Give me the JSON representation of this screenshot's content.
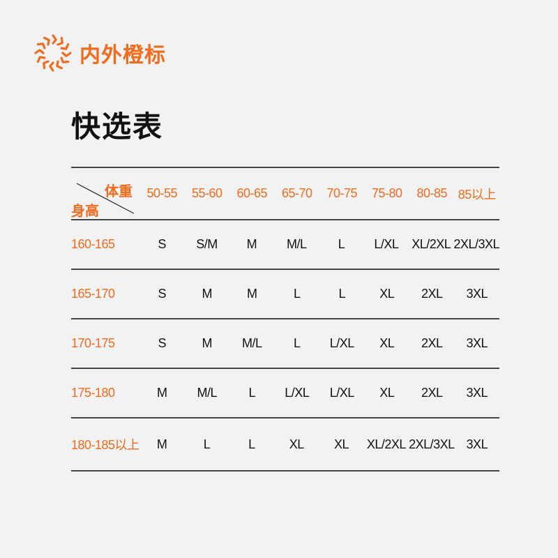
{
  "brand": {
    "name": "内外橙标",
    "color": "#f26a1b",
    "icon": "sunburst-logo-icon"
  },
  "title": "快选表",
  "table": {
    "corner": {
      "weight_label": "体重",
      "height_label": "身高"
    },
    "weights": [
      "50-55",
      "55-60",
      "60-65",
      "65-70",
      "70-75",
      "75-80",
      "80-85",
      "85以上"
    ],
    "rows": [
      {
        "height": "160-165",
        "sizes": [
          "S",
          "S/M",
          "M",
          "M/L",
          "L",
          "L/XL",
          "XL/2XL",
          "2XL/3XL"
        ]
      },
      {
        "height": "165-170",
        "sizes": [
          "S",
          "M",
          "M",
          "L",
          "L",
          "XL",
          "2XL",
          "3XL"
        ]
      },
      {
        "height": "170-175",
        "sizes": [
          "S",
          "M",
          "M/L",
          "L",
          "L/XL",
          "XL",
          "2XL",
          "3XL"
        ]
      },
      {
        "height": "175-180",
        "sizes": [
          "M",
          "M/L",
          "L",
          "L/XL",
          "L/XL",
          "XL",
          "2XL",
          "3XL"
        ]
      },
      {
        "height": "180-185以上",
        "sizes": [
          "M",
          "L",
          "L",
          "XL",
          "XL",
          "XL/2XL",
          "2XL/3XL",
          "3XL"
        ]
      }
    ]
  }
}
